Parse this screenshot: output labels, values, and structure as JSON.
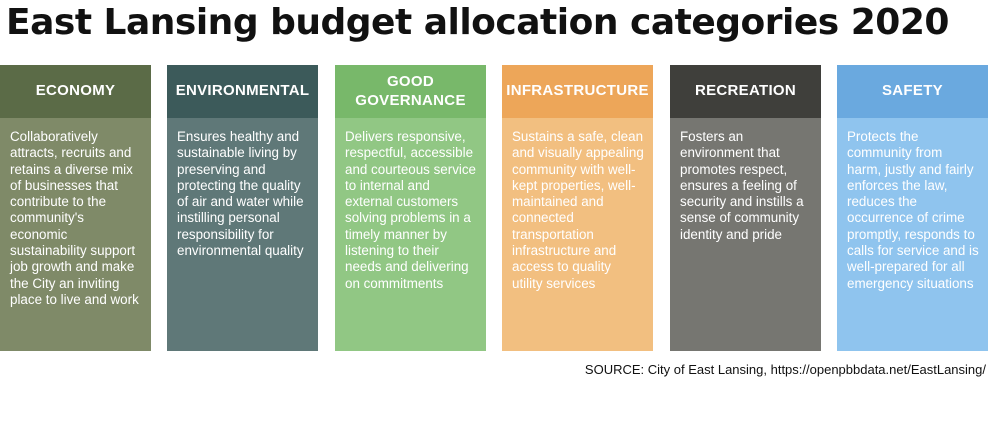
{
  "title": "East Lansing budget allocation categories 2020",
  "categories": [
    {
      "heading": "ECONOMY",
      "description": "Collaboratively attracts, recruits and retains a diverse mix of businesses that contribute to the community's economic sustainability support job growth and make the City an inviting place to live and work",
      "header_color": "#5b6b47",
      "body_color": "#7f8a68"
    },
    {
      "heading": "ENVIRONMENTAL",
      "description": "Ensures healthy and sustainable living by preserving and protecting the quality of air and water while instilling personal responsibility for environmental quality",
      "header_color": "#3c5a5a",
      "body_color": "#5f7878"
    },
    {
      "heading": "GOOD GOVERNANCE",
      "description": "Delivers responsive, respectful, accessible and courteous service to internal and external customers solving problems in a timely manner by listening to their needs and delivering on commitments",
      "header_color": "#78b86a",
      "body_color": "#91c784"
    },
    {
      "heading": "INFRASTRUCTURE",
      "description": "Sustains a safe, clean and visually appealing community with well-kept properties, well-maintained and connected transportation infrastructure and access to quality utility services",
      "header_color": "#eda659",
      "body_color": "#f2bf80"
    },
    {
      "heading": "RECREATION",
      "description": "Fosters an environment that promotes respect, ensures a feeling of security and instills a sense of community identity and pride",
      "header_color": "#3f3f3b",
      "body_color": "#767671"
    },
    {
      "heading": "SAFETY",
      "description": "Protects the community from harm, justly and fairly enforces the law, reduces the occurrence of crime promptly, responds to calls for service and is well-prepared for all emergency situations",
      "header_color": "#6aa9df",
      "body_color": "#8fc4ee"
    }
  ],
  "source": "SOURCE: City of East Lansing, https://openpbbdata.net/EastLansing/"
}
